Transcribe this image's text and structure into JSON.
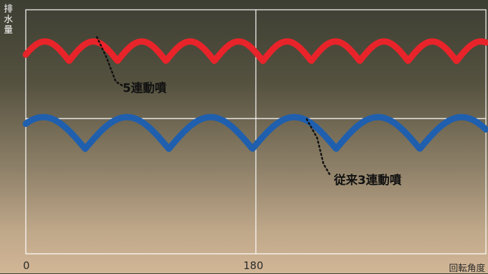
{
  "chart_data": {
    "type": "line",
    "ylabel_chars": [
      "排",
      "水",
      "量"
    ],
    "xlabel": "回転角度",
    "x_ticks": [
      "0",
      "180"
    ],
    "xlim": [
      0,
      360
    ],
    "ylim": [
      0,
      1
    ],
    "grid": true,
    "series": [
      {
        "name": "5連動噴",
        "color": "#e8242a",
        "shape": "five_pulse",
        "upper": 0.87,
        "lower": 0.79,
        "x": [
          0,
          12,
          24,
          36,
          48,
          60,
          72,
          84,
          96,
          108,
          120,
          132,
          144,
          156,
          168,
          180,
          192,
          204,
          216,
          228,
          240,
          252,
          264,
          276,
          288,
          300,
          312,
          324,
          336,
          348,
          360
        ],
        "y": [
          0.82,
          0.86,
          0.85,
          0.81,
          0.86,
          0.86,
          0.79,
          0.85,
          0.87,
          0.82,
          0.83,
          0.87,
          0.84,
          0.81,
          0.87,
          0.85,
          0.8,
          0.86,
          0.87,
          0.8,
          0.84,
          0.87,
          0.82,
          0.82,
          0.87,
          0.84,
          0.79,
          0.86,
          0.86,
          0.81,
          0.85
        ]
      },
      {
        "name": "従来3連動噴",
        "color": "#1f5fae",
        "shape": "three_pulse",
        "upper": 0.56,
        "lower": 0.43,
        "x": [
          0,
          12,
          24,
          36,
          48,
          60,
          72,
          84,
          96,
          108,
          120,
          132,
          144,
          156,
          168,
          180,
          192,
          204,
          216,
          228,
          240,
          252,
          264,
          276,
          288,
          300,
          312,
          324,
          336,
          348,
          360
        ],
        "y": [
          0.52,
          0.55,
          0.52,
          0.48,
          0.46,
          0.44,
          0.51,
          0.54,
          0.55,
          0.52,
          0.49,
          0.53,
          0.55,
          0.53,
          0.48,
          0.44,
          0.48,
          0.54,
          0.56,
          0.53,
          0.48,
          0.55,
          0.56,
          0.52,
          0.48,
          0.43,
          0.49,
          0.54,
          0.55,
          0.54,
          0.5
        ]
      }
    ],
    "annotations": [
      {
        "text": "5連動噴",
        "series": 0
      },
      {
        "text": "従来3連動噴",
        "series": 1
      }
    ]
  }
}
